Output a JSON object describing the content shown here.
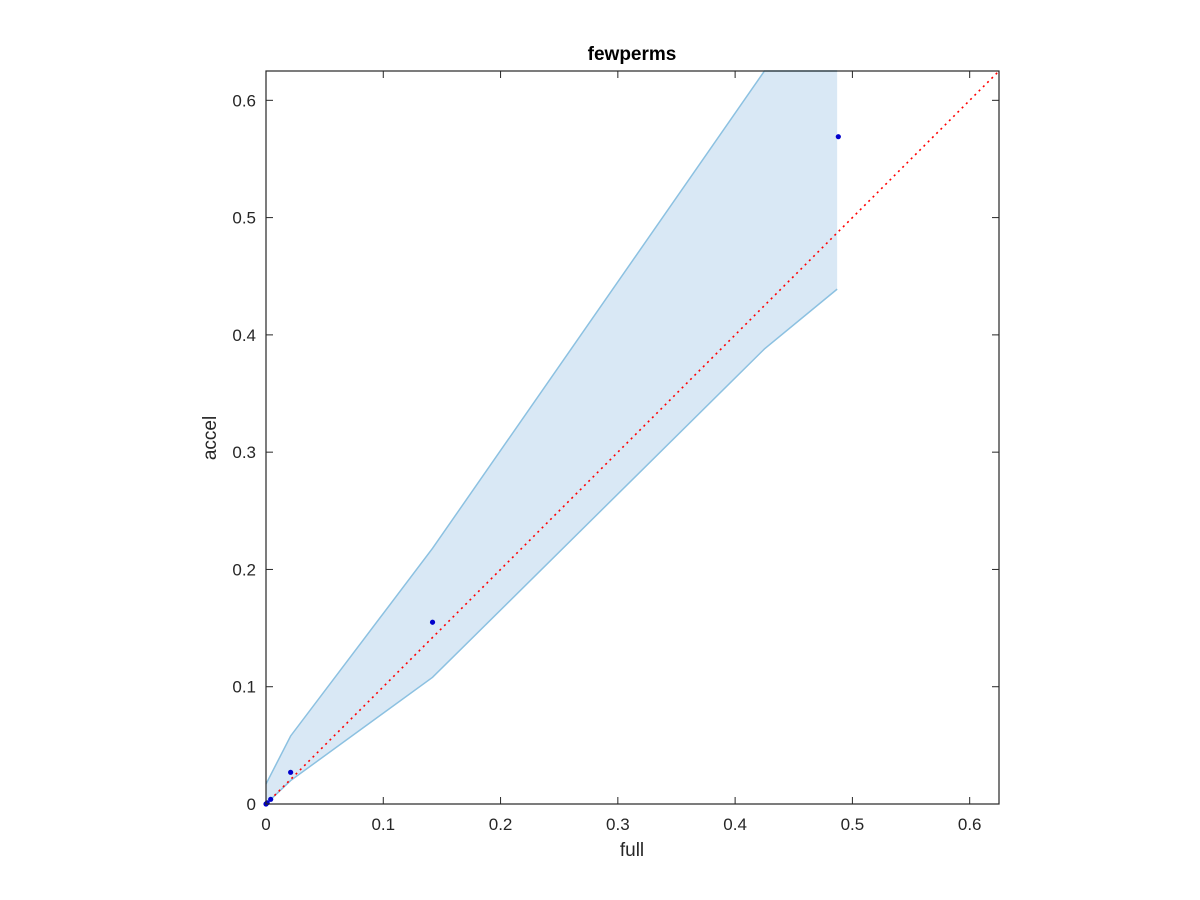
{
  "chart_data": {
    "type": "scatter",
    "title": "fewperms",
    "xlabel": "full",
    "ylabel": "accel",
    "xlim": [
      0,
      0.625
    ],
    "ylim": [
      0,
      0.625
    ],
    "xticks": [
      "0",
      "0.1",
      "0.2",
      "0.3",
      "0.4",
      "0.5",
      "0.6"
    ],
    "yticks": [
      "0",
      "0.1",
      "0.2",
      "0.3",
      "0.4",
      "0.5",
      "0.6"
    ],
    "grid": false,
    "points": [
      {
        "x": 0.0,
        "y": 0.0
      },
      {
        "x": 0.001,
        "y": 0.001
      },
      {
        "x": 0.004,
        "y": 0.004
      },
      {
        "x": 0.021,
        "y": 0.027
      },
      {
        "x": 0.142,
        "y": 0.155
      },
      {
        "x": 0.488,
        "y": 0.569
      }
    ],
    "band": {
      "x": [
        0,
        0.021,
        0.142,
        0.425,
        0.487
      ],
      "upper": [
        0.017,
        0.058,
        0.218,
        0.625,
        0.625
      ],
      "lower": [
        0,
        0.02,
        0.108,
        0.388,
        0.439
      ]
    },
    "reference_line": {
      "x": [
        0,
        0.625
      ],
      "y": [
        0,
        0.625
      ],
      "style": "dotted"
    },
    "colors": {
      "points": "#0000cc",
      "band_fill": "#d9e8f5",
      "band_edge": "#8cc1e1",
      "reference_line": "#ff0000",
      "axes": "#262626"
    }
  }
}
